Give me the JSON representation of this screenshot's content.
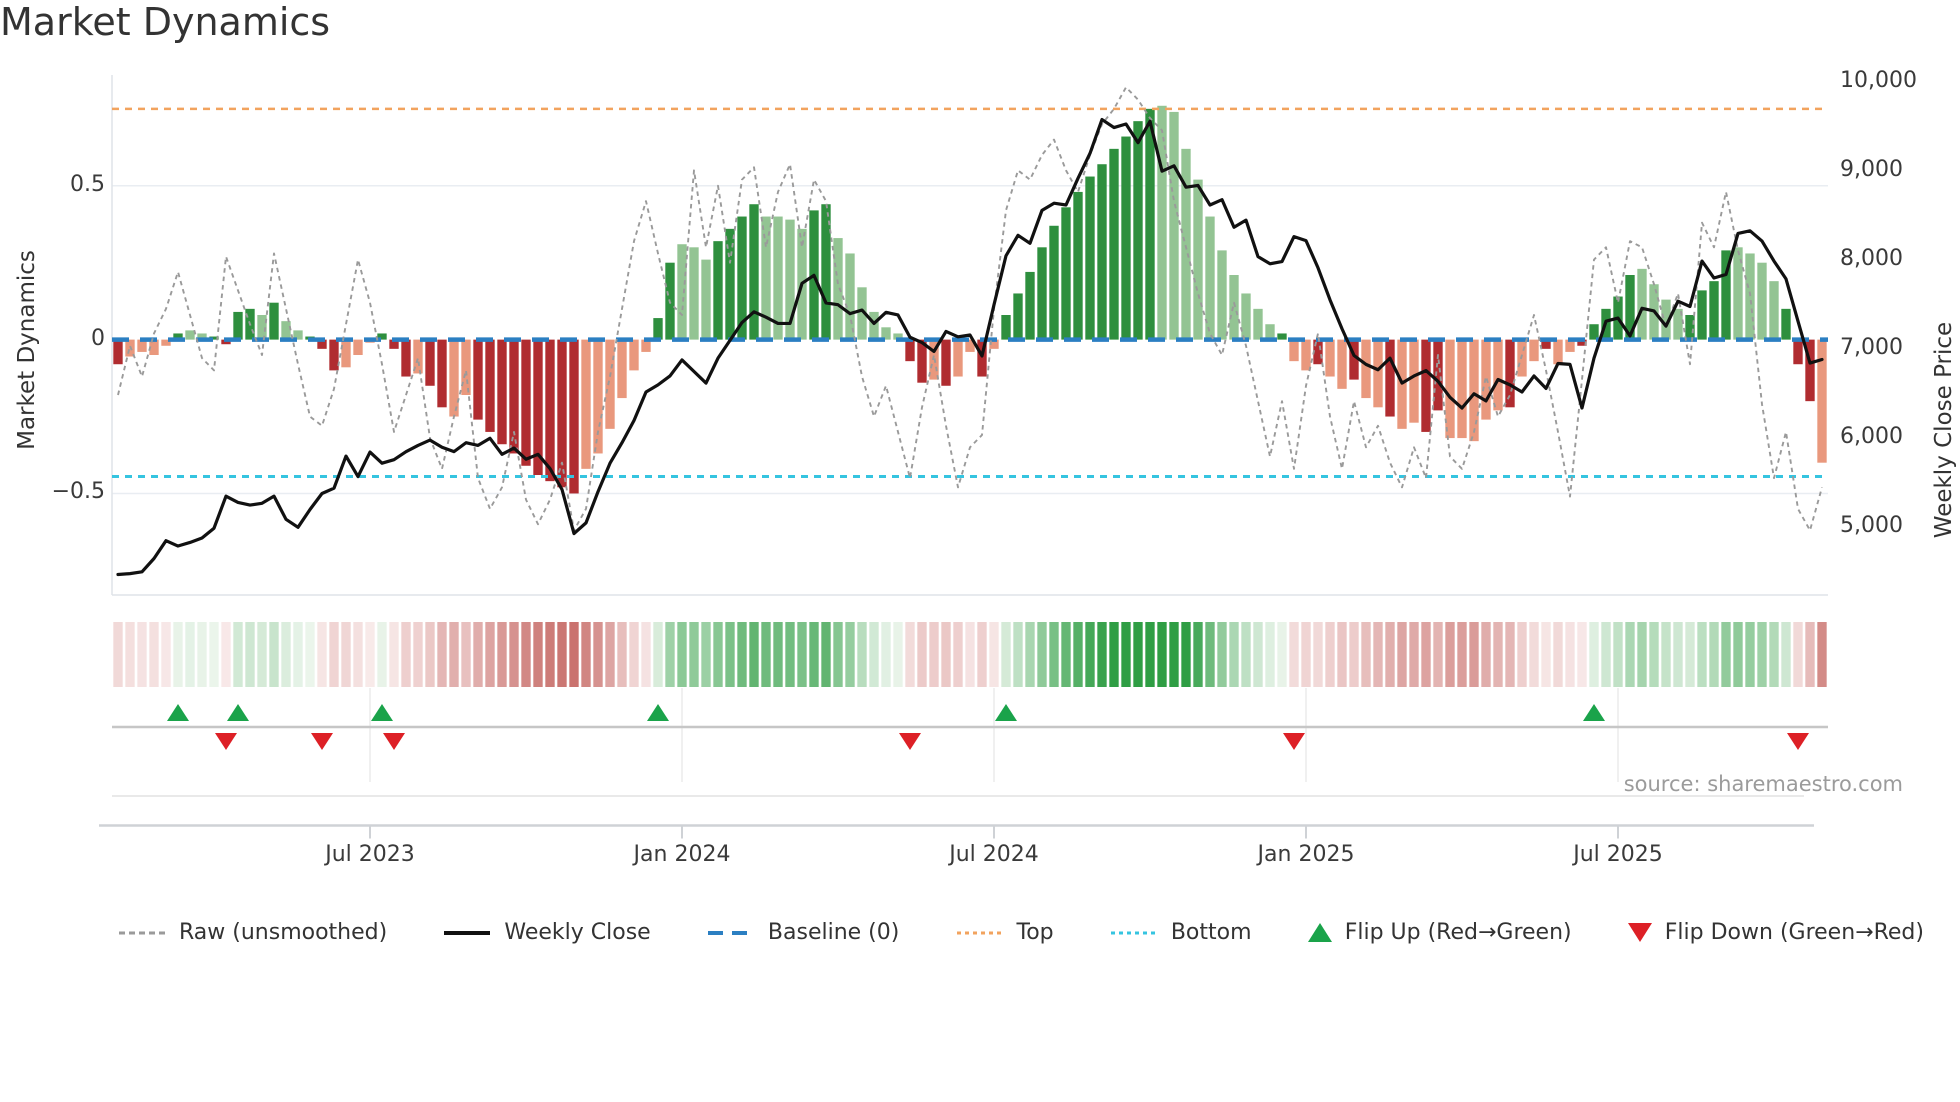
{
  "title": "Market Dynamics",
  "source": "source: sharemaestro.com",
  "axes": {
    "left_label": "Market Dynamics",
    "right_label": "Weekly Close Price",
    "left_ticks": [
      {
        "value": 0.5,
        "label": "0.5"
      },
      {
        "value": 0,
        "label": "0"
      },
      {
        "value": -0.5,
        "label": "−0.5"
      }
    ],
    "right_ticks": [
      {
        "value": 10000,
        "label": "10,000"
      },
      {
        "value": 9000,
        "label": "9,000"
      },
      {
        "value": 8000,
        "label": "8,000"
      },
      {
        "value": 7000,
        "label": "7,000"
      },
      {
        "value": 6000,
        "label": "6,000"
      },
      {
        "value": 5000,
        "label": "5,000"
      }
    ],
    "x_ticks": [
      {
        "week": 21,
        "label": "Jul 2023"
      },
      {
        "week": 47,
        "label": "Jan 2024"
      },
      {
        "week": 73,
        "label": "Jul 2024"
      },
      {
        "week": 99,
        "label": "Jan 2025"
      },
      {
        "week": 125,
        "label": "Jul 2025"
      }
    ]
  },
  "legend": [
    {
      "label": "Raw (unsmoothed)",
      "swatch": "dashed-line",
      "color": "#9a9a9a"
    },
    {
      "label": "Weekly Close",
      "swatch": "solid-line",
      "color": "#111111"
    },
    {
      "label": "Baseline (0)",
      "swatch": "long-dash-line",
      "color": "#2b7fc2"
    },
    {
      "label": "Top",
      "swatch": "dotted-line",
      "color": "#f2a35e"
    },
    {
      "label": "Bottom",
      "swatch": "dotted-line",
      "color": "#35c4e0"
    },
    {
      "label": "Flip Up (Red→Green)",
      "swatch": "triangle-up",
      "color": "#1aa34a"
    },
    {
      "label": "Flip Down (Green→Red)",
      "swatch": "triangle-down",
      "color": "#dd2026"
    }
  ],
  "chart_data": {
    "type": "combo",
    "x_start_date": "2023-02-06",
    "x_freq": "weekly",
    "n_weeks": 143,
    "ylim_left": [
      -0.83,
      0.86
    ],
    "ylim_right": [
      4240,
      10080
    ],
    "grid_values_left": [
      0.5,
      -0.5
    ],
    "baselines": {
      "baseline": 0,
      "top": 0.75,
      "bottom": -0.445
    },
    "series": [
      {
        "name": "Market Dynamics (smoothed oscillator)",
        "type": "bar",
        "axis": "left",
        "values": [
          -0.08,
          -0.055,
          -0.04,
          -0.05,
          -0.02,
          0.02,
          0.03,
          0.02,
          0.01,
          -0.015,
          0.09,
          0.1,
          0.08,
          0.12,
          0.06,
          0.03,
          0.01,
          -0.03,
          -0.1,
          -0.09,
          -0.05,
          -0.01,
          0.02,
          -0.03,
          -0.12,
          -0.11,
          -0.15,
          -0.22,
          -0.25,
          -0.18,
          -0.26,
          -0.3,
          -0.34,
          -0.37,
          -0.41,
          -0.44,
          -0.46,
          -0.48,
          -0.5,
          -0.42,
          -0.37,
          -0.29,
          -0.19,
          -0.1,
          -0.04,
          0.07,
          0.25,
          0.31,
          0.3,
          0.26,
          0.32,
          0.36,
          0.4,
          0.44,
          0.4,
          0.4,
          0.39,
          0.36,
          0.42,
          0.44,
          0.33,
          0.28,
          0.17,
          0.09,
          0.04,
          0.02,
          -0.07,
          -0.14,
          -0.13,
          -0.15,
          -0.12,
          -0.04,
          -0.12,
          -0.03,
          0.08,
          0.15,
          0.22,
          0.3,
          0.37,
          0.43,
          0.48,
          0.53,
          0.57,
          0.62,
          0.66,
          0.71,
          0.75,
          0.76,
          0.74,
          0.62,
          0.52,
          0.4,
          0.29,
          0.21,
          0.15,
          0.1,
          0.05,
          0.02,
          -0.07,
          -0.1,
          -0.08,
          -0.12,
          -0.16,
          -0.13,
          -0.19,
          -0.22,
          -0.25,
          -0.29,
          -0.27,
          -0.3,
          -0.23,
          -0.32,
          -0.32,
          -0.33,
          -0.26,
          -0.23,
          -0.22,
          -0.12,
          -0.07,
          -0.03,
          -0.08,
          -0.04,
          -0.02,
          0.05,
          0.1,
          0.14,
          0.21,
          0.23,
          0.18,
          0.13,
          0.1,
          0.08,
          0.16,
          0.19,
          0.29,
          0.3,
          0.28,
          0.25,
          0.19,
          0.1,
          -0.08,
          -0.2,
          -0.4
        ],
        "shades": "dlllldllddddldlldddllldddlddlldddddddddllllllddlllddddllllddllllllddldlldldddddddddddddlllllllllldlldlldlldllddllllldlldlldddddllllddddllllddd"
      },
      {
        "name": "Raw (unsmoothed)",
        "type": "line",
        "axis": "left",
        "values": [
          -0.18,
          -0.02,
          -0.12,
          0.02,
          0.1,
          0.22,
          0.08,
          -0.06,
          -0.1,
          0.27,
          0.16,
          0.05,
          -0.05,
          0.28,
          0.1,
          -0.08,
          -0.25,
          -0.28,
          -0.16,
          0.05,
          0.26,
          0.12,
          -0.08,
          -0.3,
          -0.18,
          -0.06,
          -0.32,
          -0.42,
          -0.25,
          -0.1,
          -0.45,
          -0.55,
          -0.48,
          -0.3,
          -0.52,
          -0.6,
          -0.52,
          -0.4,
          -0.62,
          -0.55,
          -0.3,
          -0.12,
          0.1,
          0.32,
          0.45,
          0.28,
          0.12,
          0.08,
          0.55,
          0.3,
          0.5,
          0.25,
          0.52,
          0.56,
          0.3,
          0.48,
          0.57,
          0.3,
          0.52,
          0.45,
          0.18,
          0.08,
          -0.12,
          -0.25,
          -0.15,
          -0.3,
          -0.45,
          -0.22,
          -0.05,
          -0.28,
          -0.48,
          -0.35,
          -0.31,
          0.1,
          0.42,
          0.55,
          0.52,
          0.6,
          0.65,
          0.55,
          0.48,
          0.6,
          0.7,
          0.75,
          0.82,
          0.78,
          0.72,
          0.68,
          0.45,
          0.3,
          0.15,
          0.02,
          -0.05,
          0.12,
          -0.02,
          -0.2,
          -0.38,
          -0.2,
          -0.42,
          -0.15,
          0.02,
          -0.25,
          -0.42,
          -0.2,
          -0.35,
          -0.28,
          -0.4,
          -0.48,
          -0.35,
          -0.45,
          -0.05,
          -0.38,
          -0.42,
          -0.3,
          -0.12,
          -0.25,
          -0.18,
          -0.05,
          0.08,
          -0.1,
          -0.3,
          -0.51,
          -0.13,
          0.26,
          0.3,
          0.12,
          0.32,
          0.3,
          0.18,
          0.04,
          0.15,
          -0.08,
          0.38,
          0.3,
          0.48,
          0.29,
          0.15,
          -0.21,
          -0.45,
          -0.3,
          -0.55,
          -0.62,
          -0.48
        ]
      },
      {
        "name": "Weekly Close",
        "type": "line",
        "axis": "right",
        "values": [
          4470,
          4480,
          4500,
          4650,
          4850,
          4790,
          4830,
          4880,
          4990,
          5350,
          5280,
          5250,
          5270,
          5350,
          5090,
          5000,
          5200,
          5380,
          5440,
          5800,
          5570,
          5845,
          5720,
          5760,
          5850,
          5920,
          5980,
          5900,
          5850,
          5950,
          5920,
          6000,
          5820,
          5890,
          5765,
          5820,
          5660,
          5425,
          4930,
          5050,
          5400,
          5720,
          5950,
          6200,
          6520,
          6600,
          6700,
          6880,
          6750,
          6620,
          6900,
          7100,
          7300,
          7420,
          7360,
          7290,
          7290,
          7740,
          7830,
          7520,
          7500,
          7400,
          7440,
          7290,
          7415,
          7385,
          7135,
          7075,
          6975,
          7200,
          7140,
          7160,
          6925,
          7500,
          8050,
          8280,
          8190,
          8560,
          8640,
          8620,
          8920,
          9200,
          9580,
          9490,
          9530,
          9320,
          9560,
          9000,
          9060,
          8820,
          8840,
          8620,
          8680,
          8370,
          8450,
          8040,
          7960,
          7985,
          8265,
          8220,
          7915,
          7555,
          7230,
          6930,
          6830,
          6770,
          6900,
          6620,
          6700,
          6760,
          6640,
          6460,
          6340,
          6500,
          6420,
          6660,
          6600,
          6520,
          6700,
          6560,
          6840,
          6830,
          6340,
          6900,
          7315,
          7350,
          7150,
          7460,
          7430,
          7260,
          7540,
          7480,
          7990,
          7800,
          7840,
          8300,
          8330,
          8215,
          7990,
          7790,
          7315,
          6845,
          6885
        ]
      }
    ],
    "flip_up_weeks": [
      5,
      10,
      22,
      45,
      74,
      123
    ],
    "flip_down_weeks": [
      9,
      17,
      23,
      66,
      98,
      140
    ],
    "heat_strip": "mirrors oscillator sign and intensity per week",
    "colors": {
      "bar_dark_green": "#2e8f3e",
      "bar_light_green": "#93c493",
      "bar_dark_red": "#b02c30",
      "bar_light_red": "#e9987d",
      "price_line": "#111111",
      "raw_line": "#9a9a9a",
      "baseline": "#2b7fc2",
      "top_line": "#f2a35e",
      "bottom_line": "#35c4e0",
      "flip_up": "#1aa34a",
      "flip_down": "#dd2026",
      "heat_green_max": "#2f9e44",
      "heat_green_min": "#eef6ee",
      "heat_red_max": "#c05a55",
      "heat_red_min": "#f9ecec",
      "grid": "#e9edf2",
      "spine": "#dfe3e8"
    }
  }
}
